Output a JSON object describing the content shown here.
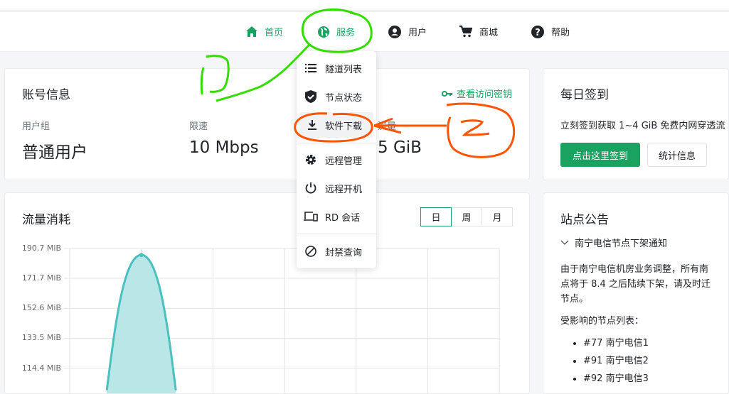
{
  "nav": [
    {
      "label": "首页",
      "icon": "home-icon"
    },
    {
      "label": "服务",
      "icon": "globe-icon"
    },
    {
      "label": "用户",
      "icon": "user-circle-icon"
    },
    {
      "label": "商城",
      "icon": "cart-icon"
    },
    {
      "label": "帮助",
      "icon": "help-circle-icon"
    }
  ],
  "menu": [
    {
      "label": "隧道列表",
      "icon": "list-icon"
    },
    {
      "label": "节点状态",
      "icon": "shield-check-icon"
    },
    {
      "label": "软件下载",
      "icon": "download-icon"
    },
    {
      "label": "远程管理",
      "icon": "gear-icon"
    },
    {
      "label": "远程开机",
      "icon": "power-icon"
    },
    {
      "label": "RD 会话",
      "icon": "devices-icon"
    },
    {
      "label": "封禁查询",
      "icon": "ban-icon"
    }
  ],
  "account": {
    "title": "账号信息",
    "key_link": "查看访问密钥",
    "group_label": "用户组",
    "group_value": "普通用户",
    "speed_label": "限速",
    "speed_value": "10 Mbps",
    "traffic_label": "流量",
    "traffic_value": "5 GiB"
  },
  "checkin": {
    "title": "每日签到",
    "desc": "立刻签到获取 1~4 GiB 免费内网穿透流",
    "checkin_button": "点击这里签到",
    "stats_button": "统计信息"
  },
  "traffic": {
    "title": "流量消耗",
    "ranges": [
      "日",
      "周",
      "月"
    ],
    "selected_range": "日"
  },
  "notice": {
    "title": "站点公告",
    "item_title": "南宁电信节点下架通知",
    "body1": "由于南宁电信机房业务调整，所有南",
    "body2": "点将于 8.4 之后陆续下架，请及时迁",
    "body3": "节点。",
    "list_title": "受影响的节点列表：",
    "nodes": [
      "#77 南宁电信1",
      "#91 南宁电信2",
      "#92 南宁电信3"
    ]
  },
  "colors": {
    "accent": "#1aa260",
    "chart_line": "#4bc0c0",
    "chart_fill": "#b5e5e5",
    "annotation_green": "#33dd00",
    "annotation_orange": "#ff5500"
  },
  "annotations": [
    "1",
    "2"
  ],
  "chart_data": {
    "type": "area",
    "ylabel": "",
    "y_ticks": [
      "190.7 MiB",
      "171.7 MiB",
      "152.6 MiB",
      "133.5 MiB",
      "114.4 MiB"
    ],
    "y_tick_values": [
      190.7,
      171.7,
      152.6,
      133.5,
      114.4
    ],
    "ylim_visible": [
      105,
      190.7
    ],
    "series": [
      {
        "values": [
          0,
          186.6,
          0,
          0,
          0,
          0,
          0
        ]
      }
    ],
    "grid": true
  }
}
